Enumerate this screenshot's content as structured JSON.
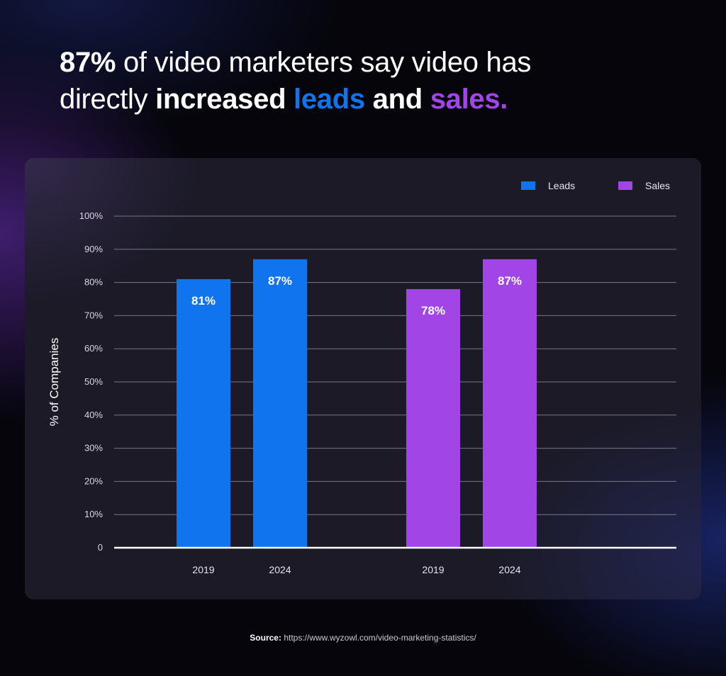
{
  "headline": {
    "pct": "87%",
    "rest1": " of video marketers say video has",
    "rest2": "directly ",
    "increased": "increased",
    "leads": "leads",
    "and": "and",
    "sales": "sales."
  },
  "source": {
    "label": "Source:",
    "url": "https://www.wyzowl.com/video-marketing-statistics/"
  },
  "colors": {
    "leads": "#0f74ee",
    "sales": "#a145e6",
    "grid": "#8e8e9c",
    "baseline": "#ffffff"
  },
  "chart_data": {
    "type": "bar",
    "title": "",
    "xlabel": "",
    "ylabel": "% of Companies",
    "ylim": [
      0,
      100
    ],
    "yticks": [
      {
        "value": 0,
        "label": "0"
      },
      {
        "value": 10,
        "label": "10%"
      },
      {
        "value": 20,
        "label": "20%"
      },
      {
        "value": 30,
        "label": "30%"
      },
      {
        "value": 40,
        "label": "40%"
      },
      {
        "value": 50,
        "label": "50%"
      },
      {
        "value": 60,
        "label": "60%"
      },
      {
        "value": 70,
        "label": "70%"
      },
      {
        "value": 80,
        "label": "80%"
      },
      {
        "value": 90,
        "label": "90%"
      },
      {
        "value": 100,
        "label": "100%"
      }
    ],
    "grid": true,
    "legend_position": "top-right",
    "series": [
      {
        "name": "Leads",
        "color": "#0f74ee",
        "points": [
          {
            "x": "2019",
            "value": 81,
            "label": "81%"
          },
          {
            "x": "2024",
            "value": 87,
            "label": "87%"
          }
        ]
      },
      {
        "name": "Sales",
        "color": "#a145e6",
        "points": [
          {
            "x": "2019",
            "value": 78,
            "label": "78%"
          },
          {
            "x": "2024",
            "value": 87,
            "label": "87%"
          }
        ]
      }
    ]
  }
}
